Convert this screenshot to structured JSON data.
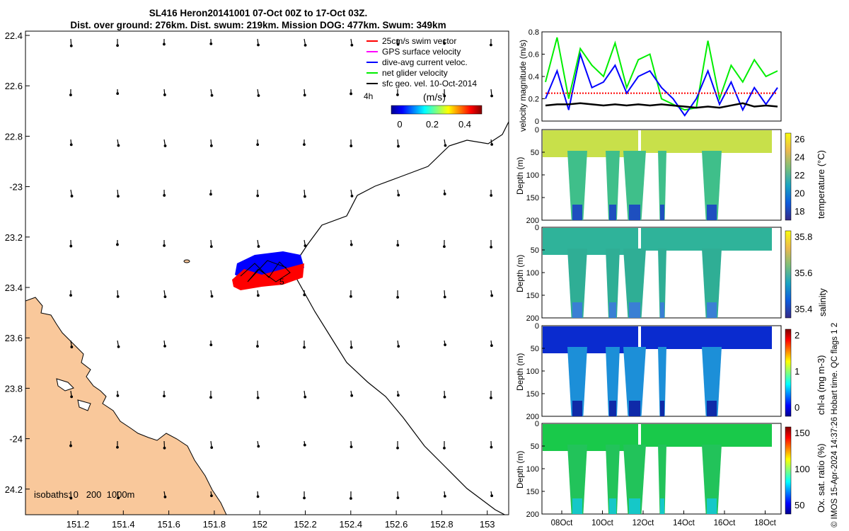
{
  "header": {
    "title_line1": "SL416 Heron20141001 07-Oct 00Z to 17-Oct 03Z.",
    "title_line2": "Dist. over ground: 276km. Dist. swum: 219km. Mission DOG: 477km. Swum: 349km"
  },
  "map": {
    "lon_ticks": [
      "151.2",
      "151.4",
      "151.6",
      "151.8",
      "152",
      "152.2",
      "152.4",
      "152.6",
      "152.8",
      "153"
    ],
    "lat_ticks": [
      "22.4",
      "22.6",
      "22.8",
      "-23",
      "23.2",
      "23.4",
      "23.6",
      "23.8",
      "-24",
      "24.2"
    ],
    "legend": [
      {
        "label": "25cm/s swim vector",
        "color": "#ff0000"
      },
      {
        "label": "GPS surface velocity",
        "color": "#ff00ff"
      },
      {
        "label": "dive-avg current veloc.",
        "color": "#0000ff"
      },
      {
        "label": "net glider velocity",
        "color": "#00ee00"
      },
      {
        "label": "sfc geo. vel. 10-Oct-2014",
        "color": "#000000"
      }
    ],
    "time_label": "4h",
    "colorbar_label": "(m/s)",
    "colorbar_ticks": [
      "0",
      "0.2",
      "0.4"
    ],
    "isobaths_text": "isobaths: 0   200  1000m",
    "track_label": "5",
    "colors": {
      "land": "#f9c89b",
      "swim": "#ff0000",
      "current": "#0000ff",
      "ground": "#00ee00"
    }
  },
  "chart_data": [
    {
      "type": "line",
      "title": "",
      "ylabel": "velocity magnitude (m/s)",
      "ylim": [
        0,
        0.8
      ],
      "yticks": [
        "0",
        "0.2",
        "0.4",
        "0.6",
        "0.8"
      ],
      "x": [
        0,
        0.5,
        1,
        1.5,
        2,
        2.5,
        3,
        3.5,
        4,
        4.5,
        5,
        5.5,
        6,
        6.5,
        7,
        7.5,
        8,
        8.5,
        9,
        9.5,
        10
      ],
      "series": [
        {
          "name": "net glider velocity",
          "color": "#00ee00",
          "values": [
            0.35,
            0.75,
            0.2,
            0.65,
            0.5,
            0.4,
            0.7,
            0.3,
            0.55,
            0.6,
            0.2,
            0.15,
            0.1,
            0.12,
            0.72,
            0.2,
            0.5,
            0.35,
            0.55,
            0.4,
            0.45
          ]
        },
        {
          "name": "dive-avg current veloc.",
          "color": "#0000ff",
          "values": [
            0.2,
            0.45,
            0.1,
            0.6,
            0.3,
            0.35,
            0.5,
            0.25,
            0.4,
            0.45,
            0.3,
            0.2,
            0.05,
            0.2,
            0.45,
            0.15,
            0.35,
            0.1,
            0.3,
            0.15,
            0.3
          ]
        },
        {
          "name": "sfc geo. vel.",
          "color": "#000000",
          "values": [
            0.14,
            0.15,
            0.15,
            0.16,
            0.15,
            0.14,
            0.15,
            0.14,
            0.15,
            0.14,
            0.15,
            0.14,
            0.13,
            0.12,
            0.13,
            0.12,
            0.14,
            0.16,
            0.13,
            0.14,
            0.13
          ]
        },
        {
          "name": "25cm/s swim vector",
          "color": "#ff0000",
          "values": [
            0.25,
            0.25,
            0.25,
            0.25,
            0.25,
            0.25,
            0.25,
            0.25,
            0.25,
            0.25,
            0.25,
            0.25,
            0.25,
            0.25,
            0.25,
            0.25,
            0.25,
            0.25,
            0.25,
            0.25,
            0.25
          ]
        }
      ]
    },
    {
      "type": "heatmap",
      "ylabel": "Depth (m)",
      "yticks": [
        "0",
        "50",
        "100",
        "150",
        "200"
      ],
      "colorbar_label": "temperature (°C)",
      "colorbar_ticks": [
        "26",
        "24",
        "22",
        "20",
        "18"
      ],
      "colorbar_range": [
        17,
        27
      ]
    },
    {
      "type": "heatmap",
      "ylabel": "Depth (m)",
      "yticks": [
        "0",
        "50",
        "100",
        "150",
        "200"
      ],
      "colorbar_label": "salinity",
      "colorbar_ticks": [
        "35.8",
        "35.6",
        "35.4"
      ],
      "colorbar_range": [
        35.3,
        35.9
      ]
    },
    {
      "type": "heatmap",
      "ylabel": "Depth (m)",
      "yticks": [
        "0",
        "50",
        "100",
        "150",
        "200"
      ],
      "colorbar_label": "chl-a (mg m-3)",
      "colorbar_ticks": [
        "2",
        "1",
        "0"
      ],
      "colorbar_range": [
        0,
        2
      ]
    },
    {
      "type": "heatmap",
      "ylabel": "Depth (m)",
      "yticks": [
        "0",
        "50",
        "100",
        "150",
        "200"
      ],
      "xticks": [
        "08Oct",
        "10Oct",
        "12Oct",
        "14Oct",
        "16Oct",
        "18Oct"
      ],
      "colorbar_label": "Ox. sat. ratio (%)",
      "colorbar_ticks": [
        "150",
        "100",
        "50"
      ],
      "colorbar_range": [
        20,
        175
      ]
    }
  ],
  "footer": {
    "credit": "© IMOS 15-Apr-2024 14:37:26 Hobart time. QC flags 1  2"
  }
}
